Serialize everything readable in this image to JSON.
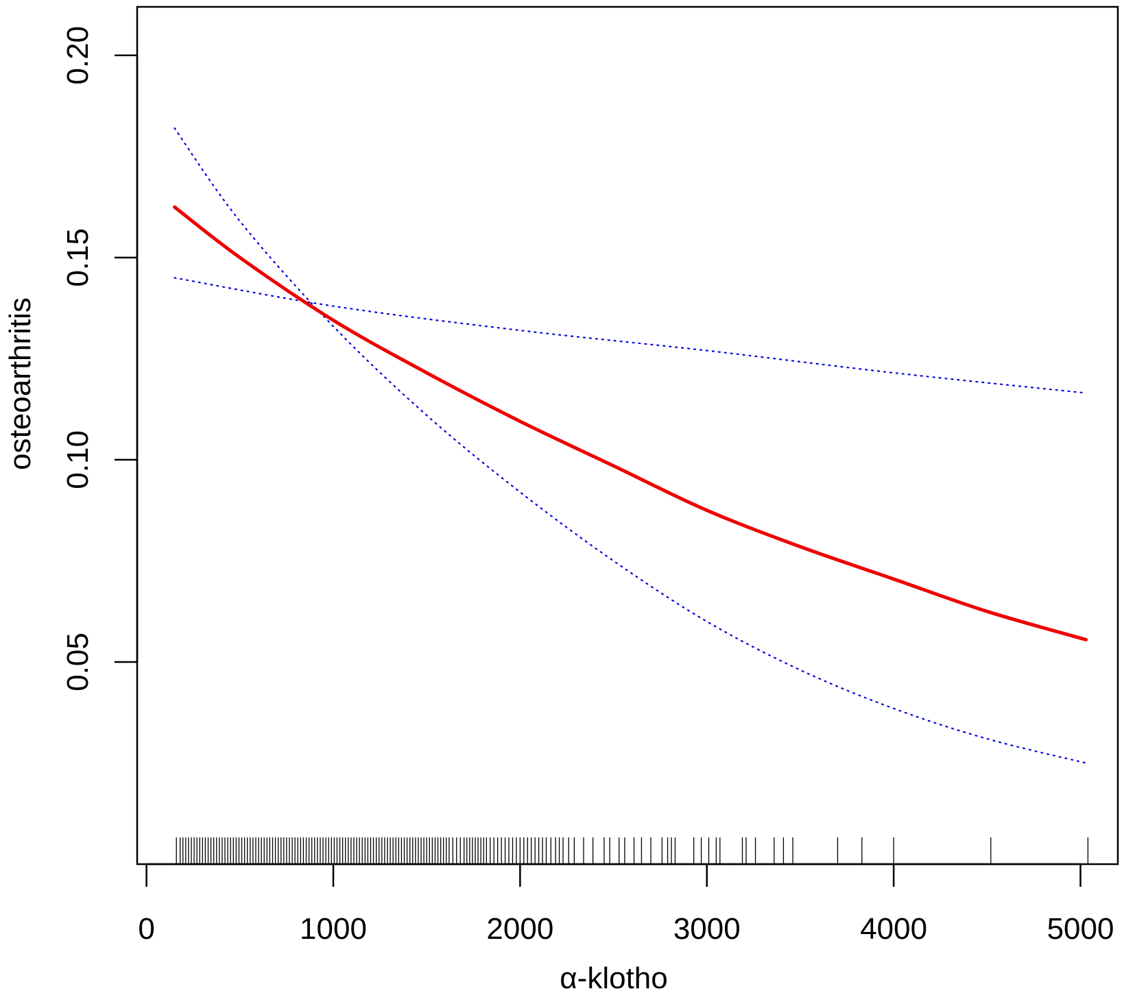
{
  "chart_data": {
    "type": "line",
    "title": "",
    "xlabel": "α-klotho",
    "ylabel": "osteoarthritis",
    "xlim": [
      -50,
      5200
    ],
    "ylim": [
      0.0,
      0.212
    ],
    "grid": false,
    "x_ticks": [
      0,
      1000,
      2000,
      3000,
      4000,
      5000
    ],
    "x_tick_labels": [
      "0",
      "1000",
      "2000",
      "3000",
      "4000",
      "5000"
    ],
    "y_ticks": [
      0.05,
      0.1,
      0.15,
      0.2
    ],
    "y_tick_labels": [
      "0.05",
      "0.10",
      "0.15",
      "0.20"
    ],
    "colors": {
      "fit": "#ee0000",
      "ci": "#0000dd",
      "axis": "#000000"
    },
    "series": [
      {
        "role": "fit",
        "x": [
          150,
          500,
          1000,
          1500,
          2000,
          2500,
          3000,
          3500,
          4000,
          4500,
          5030
        ],
        "y": [
          0.1625,
          0.15,
          0.1345,
          0.1215,
          0.1095,
          0.0985,
          0.0875,
          0.0785,
          0.0705,
          0.0625,
          0.0555
        ]
      },
      {
        "role": "ci-upper",
        "x": [
          150,
          1000,
          2000,
          3000,
          4000,
          5030
        ],
        "y": [
          0.145,
          0.138,
          0.132,
          0.127,
          0.1215,
          0.1165
        ]
      },
      {
        "role": "ci-lower",
        "x": [
          150,
          500,
          1000,
          1500,
          2000,
          2500,
          3000,
          3500,
          4000,
          4500,
          5030
        ],
        "y": [
          0.182,
          0.159,
          0.133,
          0.111,
          0.092,
          0.075,
          0.06,
          0.048,
          0.0385,
          0.031,
          0.025
        ]
      }
    ],
    "rug": [
      160,
      180,
      195,
      210,
      225,
      240,
      255,
      270,
      285,
      300,
      315,
      330,
      345,
      360,
      375,
      390,
      405,
      420,
      435,
      450,
      465,
      480,
      495,
      510,
      525,
      540,
      555,
      570,
      585,
      600,
      615,
      630,
      645,
      660,
      675,
      690,
      705,
      720,
      735,
      750,
      765,
      780,
      795,
      810,
      825,
      840,
      855,
      870,
      885,
      900,
      915,
      930,
      945,
      960,
      975,
      990,
      1005,
      1020,
      1035,
      1050,
      1065,
      1080,
      1095,
      1110,
      1125,
      1140,
      1155,
      1170,
      1185,
      1200,
      1215,
      1230,
      1245,
      1260,
      1275,
      1290,
      1305,
      1320,
      1335,
      1350,
      1365,
      1380,
      1395,
      1410,
      1425,
      1440,
      1455,
      1470,
      1485,
      1500,
      1515,
      1530,
      1545,
      1560,
      1575,
      1590,
      1605,
      1620,
      1640,
      1660,
      1680,
      1700,
      1715,
      1730,
      1745,
      1760,
      1775,
      1790,
      1805,
      1820,
      1840,
      1860,
      1880,
      1900,
      1920,
      1940,
      1960,
      1980,
      2000,
      2020,
      2040,
      2060,
      2080,
      2100,
      2120,
      2140,
      2165,
      2190,
      2210,
      2230,
      2260,
      2290,
      2340,
      2390,
      2450,
      2480,
      2530,
      2560,
      2610,
      2650,
      2700,
      2760,
      2790,
      2810,
      2830,
      2930,
      2970,
      3010,
      3050,
      3070,
      3190,
      3210,
      3260,
      3360,
      3410,
      3460,
      3700,
      3830,
      4000,
      4520,
      5040
    ]
  }
}
